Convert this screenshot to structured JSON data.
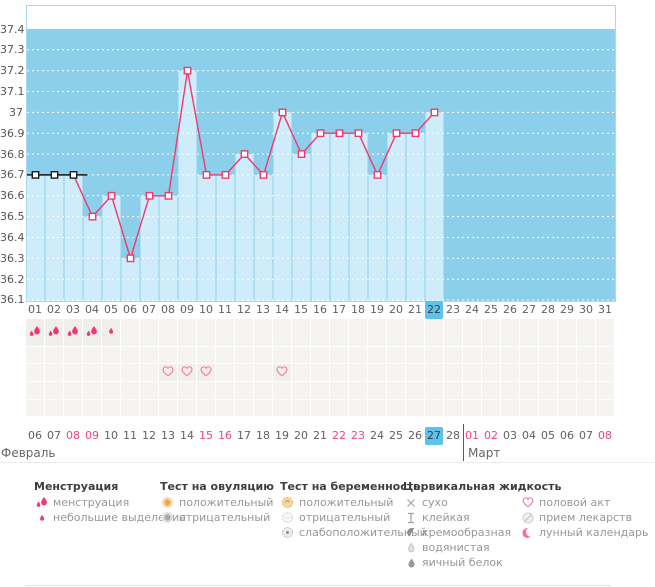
{
  "unit_label": "°C",
  "colors": {
    "plot_background": "#8ccfeb",
    "column_fill": "#cfecfa",
    "plot_border": "#a8d9ef",
    "temperature_line": "#f2386f",
    "excluded_line": "#1c1c1c",
    "marker_fill": "#ffffff",
    "today_highlight": "#5cc3ec",
    "weekend_text": "#f4437a",
    "icon_pink": "#f2386f",
    "heart_pink": "#f583a3",
    "positive_orange": "#f0a64a"
  },
  "chart_data": {
    "type": "line",
    "unit": "°C",
    "ylim": [
      36.1,
      37.4
    ],
    "ytick_step": 0.1,
    "yticks": [
      "37.4",
      "37.3",
      "37.2",
      "37.1",
      "37",
      "36.9",
      "36.8",
      "36.7",
      "36.6",
      "36.5",
      "36.4",
      "36.3",
      "36.2",
      "36.1"
    ],
    "grid": "dotted-white-horizontal",
    "categories": [
      "01",
      "02",
      "03",
      "04",
      "05",
      "06",
      "07",
      "08",
      "09",
      "10",
      "11",
      "12",
      "13",
      "14",
      "15",
      "16",
      "17",
      "18",
      "19",
      "20",
      "21",
      "22",
      "23",
      "24",
      "25",
      "26",
      "27",
      "28",
      "29",
      "30",
      "31"
    ],
    "series": [
      {
        "name": "temperature",
        "values": [
          36.7,
          36.7,
          36.7,
          36.5,
          36.6,
          36.3,
          36.6,
          36.6,
          37.2,
          36.7,
          36.7,
          36.8,
          36.7,
          37.0,
          36.8,
          36.9,
          36.9,
          36.9,
          36.7,
          36.9,
          36.9,
          37.0
        ]
      }
    ],
    "excluded_black_days": [
      1,
      2,
      3
    ],
    "highlight_day_index": 21
  },
  "marker_rows": [
    {
      "name": "menstruation-row",
      "cells": [
        {
          "day": 1,
          "icon": "menstruation-icon"
        },
        {
          "day": 2,
          "icon": "menstruation-icon"
        },
        {
          "day": 3,
          "icon": "menstruation-icon"
        },
        {
          "day": 4,
          "icon": "menstruation-icon"
        },
        {
          "day": 5,
          "icon": "spotting-icon"
        }
      ]
    },
    {
      "name": "marker-row-2",
      "cells": []
    },
    {
      "name": "intercourse-row",
      "cells": [
        {
          "day": 8,
          "icon": "intercourse-icon"
        },
        {
          "day": 9,
          "icon": "intercourse-icon"
        },
        {
          "day": 10,
          "icon": "intercourse-icon"
        },
        {
          "day": 14,
          "icon": "intercourse-icon"
        }
      ]
    },
    {
      "name": "marker-row-4",
      "cells": []
    },
    {
      "name": "marker-row-5",
      "cells": []
    }
  ],
  "date_row": {
    "highlight_index": 21,
    "cells": [
      {
        "label": "06"
      },
      {
        "label": "07"
      },
      {
        "label": "08",
        "weekend": true
      },
      {
        "label": "09",
        "weekend": true
      },
      {
        "label": "10"
      },
      {
        "label": "11"
      },
      {
        "label": "12"
      },
      {
        "label": "13"
      },
      {
        "label": "14"
      },
      {
        "label": "15",
        "weekend": true
      },
      {
        "label": "16",
        "weekend": true
      },
      {
        "label": "17"
      },
      {
        "label": "18"
      },
      {
        "label": "19"
      },
      {
        "label": "20"
      },
      {
        "label": "21"
      },
      {
        "label": "22",
        "weekend": true
      },
      {
        "label": "23",
        "weekend": true
      },
      {
        "label": "24"
      },
      {
        "label": "25"
      },
      {
        "label": "26"
      },
      {
        "label": "27"
      },
      {
        "label": "28"
      },
      {
        "label": "01",
        "weekend": true
      },
      {
        "label": "02",
        "weekend": true
      },
      {
        "label": "03"
      },
      {
        "label": "04"
      },
      {
        "label": "05"
      },
      {
        "label": "06"
      },
      {
        "label": "07"
      },
      {
        "label": "08",
        "weekend": true
      }
    ]
  },
  "months": [
    {
      "label": "Февраль"
    },
    {
      "label": "Март"
    }
  ],
  "legend": {
    "sections": [
      {
        "title": "Менструация",
        "items": [
          {
            "icon": "menstruation-icon",
            "label": "менструация"
          },
          {
            "icon": "spotting-icon",
            "label": "небольшие выделения"
          }
        ]
      },
      {
        "title": "Тест на овуляцию",
        "items": [
          {
            "icon": "ovulation-positive-icon",
            "label": "положительный"
          },
          {
            "icon": "ovulation-negative-icon",
            "label": "отрицательный"
          }
        ]
      },
      {
        "title": "Тест на беременность",
        "items": [
          {
            "icon": "pregnancy-positive-icon",
            "label": "положительный"
          },
          {
            "icon": "pregnancy-negative-icon",
            "label": "отрицательный"
          },
          {
            "icon": "pregnancy-weak-positive-icon",
            "label": "слабоположительный"
          }
        ]
      },
      {
        "title": "Цервикальная жидкость",
        "items": [
          {
            "icon": "dry-icon",
            "label": "сухо"
          },
          {
            "icon": "sticky-icon",
            "label": "клейкая"
          },
          {
            "icon": "creamy-icon",
            "label": "кремообразная"
          },
          {
            "icon": "watery-icon",
            "label": "водянистая"
          },
          {
            "icon": "eggwhite-icon",
            "label": "яичный белок"
          }
        ]
      },
      {
        "title": "",
        "items": [
          {
            "icon": "intercourse-icon",
            "label": "половой акт"
          },
          {
            "icon": "medication-icon",
            "label": "прием лекарств"
          },
          {
            "icon": "lunar-calendar-icon",
            "label": "лунный календарь"
          }
        ]
      }
    ]
  }
}
